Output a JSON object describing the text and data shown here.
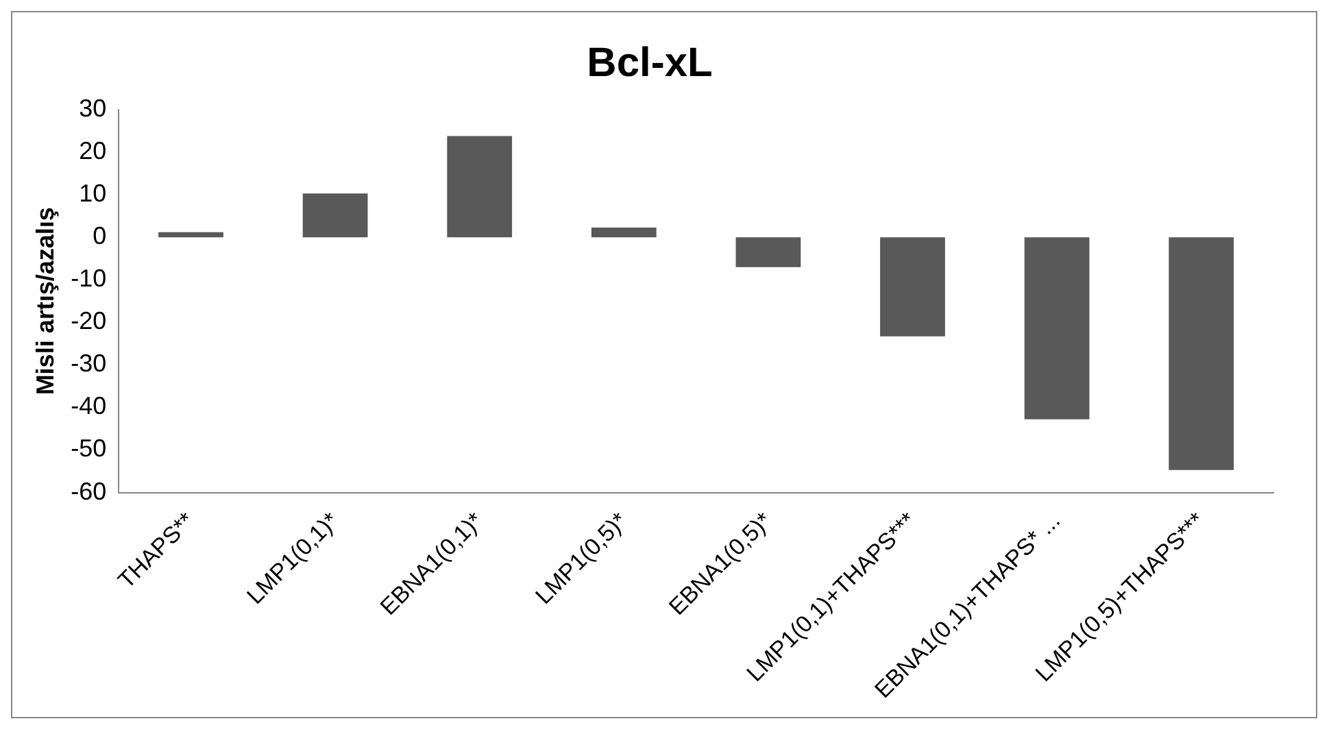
{
  "chart_data": {
    "type": "bar",
    "title": "Bcl-xL",
    "ylabel": "Misli artış/azalış",
    "categories": [
      "THAPS**",
      "LMP1(0,1)*",
      "EBNA1(0,1)*",
      "LMP1(0,5)*",
      "EBNA1(0,5)*",
      "LMP1(0,1)+THAPS***",
      "EBNA1(0,1)+THAPS* ...",
      "LMP1(0,5)+THAPS***"
    ],
    "values": [
      1.2,
      10.3,
      23.8,
      2.3,
      -7,
      -23.3,
      -42.8,
      -54.7
    ],
    "color": "#595959",
    "ylim": [
      -60,
      30
    ],
    "yticks": [
      -60,
      -50,
      -40,
      -30,
      -20,
      -10,
      0,
      10,
      20,
      30
    ],
    "grid": false
  }
}
